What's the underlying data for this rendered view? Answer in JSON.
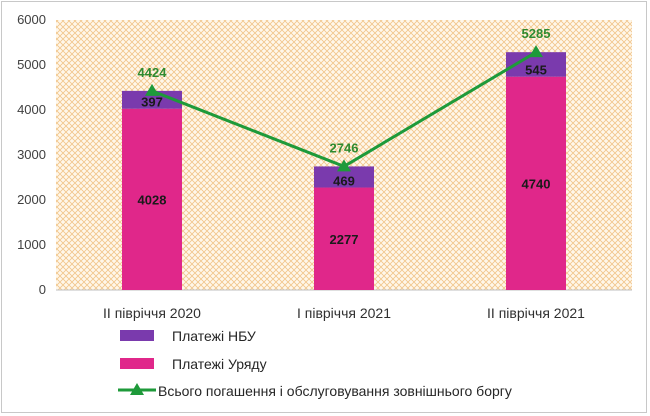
{
  "chart_data": {
    "type": "bar",
    "stacked": true,
    "categories": [
      "ІІ півріччя 2020",
      "І півріччя 2021",
      "ІІ півріччя 2021"
    ],
    "series": [
      {
        "name": "Платежі Уряду",
        "values": [
          4028,
          2277,
          4740
        ],
        "color": "#e0278a"
      },
      {
        "name": "Платежі НБУ",
        "values": [
          397,
          469,
          545
        ],
        "color": "#7a3aad"
      }
    ],
    "line_series": {
      "name": "Всього погашення і обслуговування зовнішнього боргу",
      "values": [
        4424,
        2746,
        5285
      ],
      "color": "#1e9a3a"
    },
    "ylim": [
      0,
      6000
    ],
    "yticks": [
      0,
      1000,
      2000,
      3000,
      4000,
      5000,
      6000
    ],
    "legend_position": "bottom",
    "plot_background": "orange crosshatch pattern",
    "title": "",
    "xlabel": "",
    "ylabel": ""
  }
}
